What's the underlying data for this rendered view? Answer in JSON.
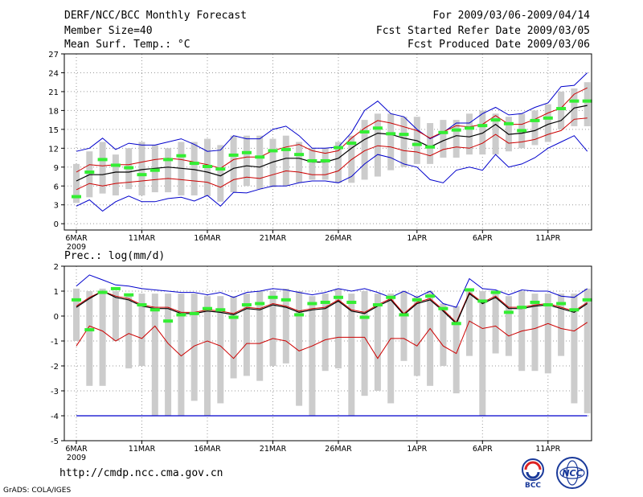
{
  "header": {
    "title": "DERF/NCC/BCC Monthly Forecast",
    "member_size": "Member Size=40",
    "panel1_label": "Mean Surf. Temp.: °C",
    "period": "For 2009/03/06-2009/04/14",
    "started": "Fcst Started Refer Date 2009/03/05",
    "produced": "Fcst Produced Date 2009/03/06"
  },
  "footer": {
    "url": "http://cmdp.ncc.cma.gov.cn",
    "grads": "GrADS: COLA/IGES",
    "logo1_text": "BCC",
    "logo2_text": "NCC"
  },
  "colors": {
    "box": "#cccccc",
    "median": "#000000",
    "pct": "#cc0000",
    "extreme": "#0000cc",
    "obs": "#33ee33",
    "grid": "#999999"
  },
  "chart_data": [
    {
      "type": "box-whisker-line",
      "title": "Mean Surf. Temp.: °C",
      "ylim": [
        -1,
        27
      ],
      "yticks": [
        0,
        3,
        6,
        9,
        12,
        15,
        18,
        21,
        24,
        27
      ],
      "xticks": [
        {
          "i": 0,
          "label": "6MAR",
          "sub": "2009"
        },
        {
          "i": 5,
          "label": "11MAR",
          "sub": ""
        },
        {
          "i": 10,
          "label": "16MAR",
          "sub": ""
        },
        {
          "i": 15,
          "label": "21MAR",
          "sub": ""
        },
        {
          "i": 20,
          "label": "26MAR",
          "sub": ""
        },
        {
          "i": 26,
          "label": "1APR",
          "sub": ""
        },
        {
          "i": 31,
          "label": "6APR",
          "sub": ""
        },
        {
          "i": 36,
          "label": "11APR",
          "sub": ""
        }
      ],
      "n": 40,
      "box_low": [
        3.3,
        4.2,
        4.8,
        4.5,
        5.5,
        4.5,
        5,
        5,
        4.5,
        4.5,
        4.4,
        3.5,
        5,
        6,
        5.5,
        5.8,
        6,
        6.5,
        7,
        7,
        6.5,
        6.5,
        7,
        7.5,
        8.5,
        9,
        9.5,
        9.5,
        10.5,
        10.5,
        11,
        11,
        11,
        11.5,
        12,
        12.5,
        13,
        15,
        15.5,
        15.5
      ],
      "box_high": [
        9.5,
        11.5,
        13,
        11,
        12,
        13,
        12.5,
        12,
        13,
        13,
        13.5,
        12.5,
        14,
        14,
        14,
        13.5,
        14,
        13,
        12,
        12,
        13,
        14,
        16.5,
        17.5,
        17.5,
        17,
        17,
        16,
        16.5,
        16.5,
        17.5,
        18,
        17.5,
        17,
        17.5,
        18,
        19,
        21,
        21.5,
        22.5
      ],
      "median": [
        6.8,
        7.8,
        7.8,
        8.2,
        8.2,
        8.6,
        8.8,
        9.0,
        8.8,
        8.6,
        8.2,
        7.6,
        8.8,
        9.2,
        9.0,
        9.8,
        10.4,
        10.4,
        9.8,
        9.8,
        10.4,
        12.0,
        13.4,
        14.4,
        14.2,
        13.6,
        13.2,
        12.2,
        13.2,
        14.0,
        13.8,
        14.4,
        15.8,
        14.2,
        14.4,
        14.8,
        15.8,
        16.4,
        18.4,
        18.8
      ],
      "p_high": [
        8.2,
        9.4,
        9.2,
        9.4,
        9.4,
        9.8,
        10.2,
        10.4,
        10.2,
        9.8,
        9.4,
        8.8,
        10.2,
        10.6,
        10.6,
        11.6,
        12.2,
        12.6,
        11.6,
        11.2,
        11.6,
        13.6,
        15.2,
        16.4,
        16.0,
        15.4,
        14.8,
        13.6,
        14.6,
        15.6,
        15.4,
        15.8,
        17.2,
        15.8,
        15.8,
        16.6,
        17.6,
        18.4,
        20.6,
        21.6
      ],
      "p_low": [
        5.4,
        6.4,
        6.0,
        6.4,
        6.6,
        6.8,
        7.0,
        7.2,
        7.0,
        6.8,
        6.6,
        5.8,
        7.0,
        7.4,
        7.2,
        7.8,
        8.4,
        8.2,
        7.8,
        7.8,
        8.4,
        10.2,
        11.6,
        12.4,
        12.2,
        11.6,
        11.4,
        10.8,
        11.8,
        12.2,
        12.0,
        12.8,
        14.2,
        12.8,
        13.0,
        13.4,
        14.2,
        14.8,
        16.6,
        16.8
      ],
      "extreme_high": [
        11.5,
        12,
        13.6,
        11.8,
        12.8,
        12.5,
        12.5,
        13,
        13.5,
        12.6,
        11.5,
        11.7,
        14,
        13.5,
        13.5,
        15,
        15.5,
        14,
        12,
        12,
        12.2,
        14.5,
        18,
        19.5,
        17.5,
        17,
        15,
        13.5,
        14.5,
        16,
        16,
        17.5,
        18.5,
        17.3,
        17.5,
        18.5,
        19.2,
        21.8,
        22,
        24
      ],
      "extreme_low": [
        2.8,
        3.8,
        2.0,
        3.5,
        4.4,
        3.5,
        3.5,
        4.0,
        4.2,
        3.6,
        4.5,
        2.8,
        5.0,
        4.9,
        5.5,
        6.0,
        6.0,
        6.5,
        6.8,
        6.8,
        6.5,
        7.5,
        9.5,
        11,
        10.5,
        9.5,
        9.0,
        7.0,
        6.5,
        8.5,
        9.0,
        8.5,
        11.0,
        9.0,
        9.5,
        10.5,
        12.0,
        13.0,
        14.0,
        11.5
      ],
      "observed": [
        4.3,
        8.2,
        10.2,
        9.3,
        8.9,
        7.8,
        8.5,
        10.2,
        10.8,
        9.6,
        9.1,
        8.7,
        10.9,
        11.3,
        10.6,
        11.6,
        11.8,
        11.0,
        10.0,
        10.0,
        12.1,
        12.8,
        14.6,
        15.2,
        14.3,
        14.2,
        12.6,
        12.2,
        14.5,
        14.9,
        15.2,
        15.6,
        16.5,
        15.9,
        14.8,
        16.4,
        16.8,
        18.3,
        19.5,
        19.5
      ]
    },
    {
      "type": "box-whisker-line",
      "title": "Prec.: log(mm/d)",
      "ylim": [
        -5,
        2
      ],
      "yticks": [
        -5,
        -4,
        -3,
        -2,
        -1,
        0,
        1,
        2
      ],
      "xticks": [
        {
          "i": 0,
          "label": "6MAR",
          "sub": "2009"
        },
        {
          "i": 5,
          "label": "11MAR",
          "sub": ""
        },
        {
          "i": 10,
          "label": "16MAR",
          "sub": ""
        },
        {
          "i": 15,
          "label": "21MAR",
          "sub": ""
        },
        {
          "i": 20,
          "label": "26MAR",
          "sub": ""
        },
        {
          "i": 26,
          "label": "1APR",
          "sub": ""
        },
        {
          "i": 31,
          "label": "6APR",
          "sub": ""
        },
        {
          "i": 36,
          "label": "11APR",
          "sub": ""
        }
      ],
      "n": 40,
      "box_low": [
        -1.0,
        -2.8,
        -2.8,
        -1.0,
        -2.1,
        -2.0,
        -4.0,
        -4.0,
        -4.0,
        -3.4,
        -4.0,
        -3.5,
        -2.5,
        -2.4,
        -2.6,
        -2.0,
        -1.9,
        -3.6,
        -4.0,
        -2.2,
        -2.1,
        -4.0,
        -3.2,
        -3.0,
        -3.5,
        -1.8,
        -2.4,
        -2.8,
        -2.0,
        -3.1,
        -1.6,
        -4.0,
        -1.5,
        -1.6,
        -2.2,
        -2.2,
        -2.3,
        -1.6,
        -3.5,
        -3.9
      ],
      "box_high": [
        1.1,
        1.0,
        1.1,
        1.0,
        0.9,
        0.9,
        0.9,
        0.9,
        0.9,
        0.9,
        0.8,
        0.8,
        0.8,
        0.9,
        1.0,
        1.0,
        1.1,
        1.0,
        0.8,
        0.9,
        1.1,
        0.9,
        1.0,
        0.9,
        0.9,
        1.0,
        0.8,
        1.0,
        0.5,
        0.4,
        1.1,
        1.0,
        0.9,
        0.8,
        1.0,
        0.9,
        0.9,
        0.9,
        0.9,
        1.1
      ],
      "median": [
        0.35,
        0.7,
        1.0,
        0.75,
        0.65,
        0.4,
        0.3,
        0.3,
        0.1,
        0.1,
        0.2,
        0.15,
        0.05,
        0.3,
        0.25,
        0.45,
        0.35,
        0.15,
        0.25,
        0.3,
        0.6,
        0.2,
        0.1,
        0.4,
        0.65,
        0.05,
        0.5,
        0.65,
        0.2,
        -0.3,
        0.9,
        0.5,
        0.75,
        0.3,
        0.3,
        0.4,
        0.45,
        0.3,
        0.15,
        0.5
      ],
      "p_high": [
        0.4,
        0.75,
        1.0,
        0.8,
        0.7,
        0.45,
        0.35,
        0.35,
        0.15,
        0.15,
        0.25,
        0.2,
        0.1,
        0.35,
        0.3,
        0.5,
        0.4,
        0.2,
        0.3,
        0.35,
        0.65,
        0.25,
        0.15,
        0.45,
        0.7,
        0.1,
        0.55,
        0.7,
        0.25,
        -0.25,
        0.95,
        0.55,
        0.8,
        0.35,
        0.35,
        0.45,
        0.5,
        0.35,
        0.2,
        0.55
      ],
      "p_low": [
        -1.2,
        -0.4,
        -0.6,
        -1.0,
        -0.7,
        -0.9,
        -0.4,
        -1.1,
        -1.6,
        -1.2,
        -1.0,
        -1.2,
        -1.7,
        -1.1,
        -1.1,
        -0.9,
        -1.0,
        -1.4,
        -1.2,
        -0.95,
        -0.85,
        -0.85,
        -0.85,
        -1.7,
        -0.9,
        -0.9,
        -1.2,
        -0.5,
        -1.2,
        -1.5,
        -0.2,
        -0.5,
        -0.4,
        -0.8,
        -0.6,
        -0.5,
        -0.3,
        -0.5,
        -0.6,
        -0.25
      ],
      "extreme_high": [
        1.2,
        1.65,
        1.45,
        1.25,
        1.2,
        1.1,
        1.05,
        1.0,
        0.95,
        0.95,
        0.85,
        0.95,
        0.75,
        0.95,
        1.0,
        1.1,
        1.05,
        0.95,
        0.85,
        0.95,
        1.1,
        1.0,
        1.1,
        0.95,
        0.75,
        1.0,
        0.75,
        1.0,
        0.5,
        0.35,
        1.5,
        1.1,
        1.05,
        0.85,
        1.05,
        1.0,
        1.0,
        0.8,
        0.75,
        1.1
      ],
      "extreme_low": [
        -4.0,
        -4.0,
        -4.0,
        -4.0,
        -4.0,
        -4.0,
        -4.0,
        -4.0,
        -4.0,
        -4.0,
        -4.0,
        -4.0,
        -4.0,
        -4.0,
        -4.0,
        -4.0,
        -4.0,
        -4.0,
        -4.0,
        -4.0,
        -4.0,
        -4.0,
        -4.0,
        -4.0,
        -4.0,
        -4.0,
        -4.0,
        -4.0,
        -4.0,
        -4.0,
        -4.0,
        -4.0,
        -4.0,
        -4.0,
        -4.0,
        -4.0,
        -4.0,
        -4.0,
        -4.0,
        -4.0
      ],
      "observed": [
        0.65,
        -0.55,
        0.95,
        1.1,
        0.85,
        0.45,
        0.25,
        -0.2,
        0.05,
        0.1,
        0.3,
        0.25,
        -0.05,
        0.45,
        0.5,
        0.75,
        0.65,
        0.05,
        0.5,
        0.55,
        0.75,
        0.55,
        -0.05,
        0.45,
        0.75,
        0.05,
        0.65,
        0.8,
        0.3,
        -0.3,
        1.05,
        0.6,
        0.95,
        0.15,
        0.35,
        0.55,
        0.45,
        0.5,
        0.25,
        0.65
      ]
    }
  ]
}
